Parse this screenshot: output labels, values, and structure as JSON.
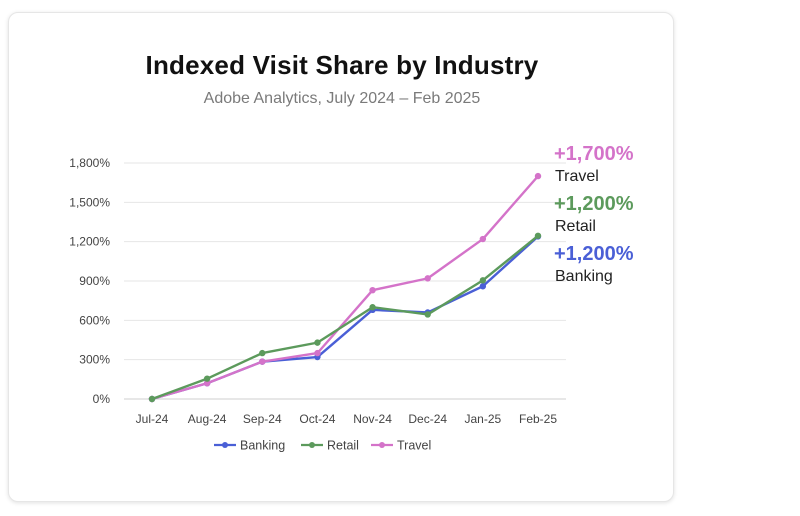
{
  "chart_data": {
    "type": "line",
    "title": "Indexed Visit Share by Industry",
    "subtitle": "Adobe Analytics, July 2024 – Feb 2025",
    "categories": [
      "Jul-24",
      "Aug-24",
      "Sep-24",
      "Oct-24",
      "Nov-24",
      "Dec-24",
      "Jan-25",
      "Feb-25"
    ],
    "yticks": [
      0,
      300,
      600,
      900,
      1200,
      1500,
      1800
    ],
    "ytick_labels": [
      "0%",
      "300%",
      "600%",
      "900%",
      "1,200%",
      "1,500%",
      "1,800%"
    ],
    "ylim": [
      0,
      1800
    ],
    "grid": true,
    "legend_position": "bottom",
    "series": [
      {
        "name": "Banking",
        "color": "#4a5fd6",
        "values": [
          0,
          120,
          285,
          320,
          680,
          660,
          860,
          1240
        ]
      },
      {
        "name": "Retail",
        "color": "#5c9a5c",
        "values": [
          0,
          155,
          350,
          430,
          700,
          645,
          905,
          1245
        ]
      },
      {
        "name": "Travel",
        "color": "#d473c9",
        "values": [
          0,
          120,
          285,
          350,
          830,
          920,
          1220,
          1700
        ]
      }
    ],
    "annotations": [
      {
        "series": "Travel",
        "value": "+1,700%",
        "label": "Travel",
        "color": "#d473c9"
      },
      {
        "series": "Retail",
        "value": "+1,200%",
        "label": "Retail",
        "color": "#5c9a5c"
      },
      {
        "series": "Banking",
        "value": "+1,200%",
        "label": "Banking",
        "color": "#4a5fd6"
      }
    ]
  }
}
